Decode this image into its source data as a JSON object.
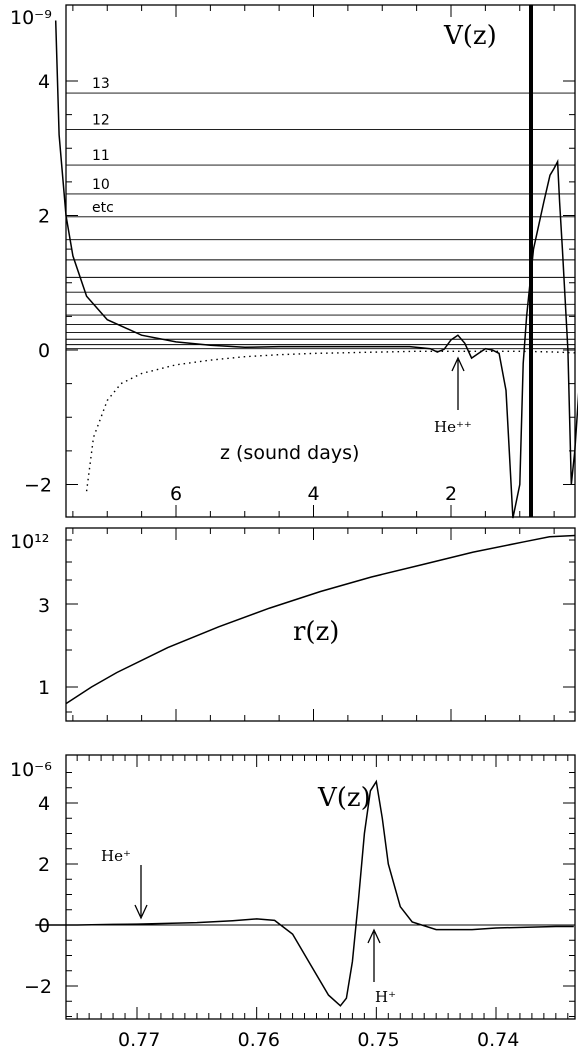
{
  "chart_data": [
    {
      "type": "line",
      "title": "V(z)",
      "scale_label": "10⁻⁹",
      "xlabel": "z (sound days)",
      "xlim": [
        7.9,
        -0.35
      ],
      "ylim": [
        -2.0,
        5.0
      ],
      "x_ticks": [
        "6",
        "4",
        "2"
      ],
      "y_ticks": [
        "4",
        "2",
        "0",
        "−2"
      ],
      "levels": [
        0.02,
        0.08,
        0.16,
        0.26,
        0.38,
        0.52,
        0.68,
        0.86,
        1.08,
        1.34,
        1.64,
        1.98,
        2.32,
        2.75,
        3.28,
        3.82
      ],
      "level_labels": [
        {
          "text": "13",
          "level": 3.82
        },
        {
          "text": "12",
          "level": 3.28
        },
        {
          "text": "11",
          "level": 2.75
        },
        {
          "text": "10",
          "level": 2.32
        },
        {
          "text": "etc",
          "level": 1.98
        }
      ],
      "series": [
        {
          "style": "solid",
          "x": [
            7.75,
            7.7,
            7.6,
            7.5,
            7.3,
            7.0,
            6.5,
            6.0,
            5.5,
            5.0,
            4.5,
            4.0,
            3.5,
            3.0,
            2.6,
            2.3,
            2.2,
            2.1,
            2.0,
            1.9,
            1.8,
            1.7,
            1.6,
            1.5,
            1.4,
            1.3,
            1.2,
            1.1,
            1.0,
            0.95,
            0.9,
            0.8,
            0.65,
            0.56,
            0.5,
            0.45,
            0.42,
            0.38,
            0.3,
            0.25,
            0.2,
            0.1,
            0.0,
            -0.1,
            -0.2,
            -0.3,
            -0.35
          ],
          "y": [
            4.9,
            3.2,
            2.0,
            1.4,
            0.8,
            0.45,
            0.22,
            0.12,
            0.07,
            0.04,
            0.05,
            0.05,
            0.05,
            0.05,
            0.05,
            0.02,
            -0.03,
            0.01,
            0.15,
            0.22,
            0.1,
            -0.12,
            -0.05,
            0.02,
            0.0,
            -0.05,
            -0.6,
            -2.5,
            -2.0,
            -0.2,
            0.5,
            1.5,
            2.2,
            2.6,
            2.7,
            2.8,
            2.2,
            1.5,
            0.0,
            -2.0,
            -1.5,
            0.0,
            -0.05,
            0.05,
            0.0,
            -0.02,
            -0.02
          ]
        },
        {
          "style": "dotted",
          "x": [
            7.3,
            7.2,
            7.0,
            6.8,
            6.5,
            6.0,
            5.5,
            5.0,
            4.5,
            4.0,
            3.5,
            3.0,
            2.5,
            2.0,
            1.5,
            1.0,
            0.5,
            0.0,
            -0.35
          ],
          "y": [
            -2.1,
            -1.3,
            -0.75,
            -0.5,
            -0.35,
            -0.22,
            -0.15,
            -0.1,
            -0.07,
            -0.05,
            -0.04,
            -0.03,
            -0.02,
            -0.02,
            -0.02,
            -0.02,
            -0.03,
            -0.05,
            -0.05
          ]
        }
      ],
      "annotations": [
        {
          "text": "He⁺⁺",
          "x": 2.1,
          "y": -0.4
        }
      ]
    },
    {
      "type": "line",
      "title": "r(z)",
      "scale_label": "10¹²",
      "y_ticks": [
        "3",
        "1"
      ],
      "series": [
        {
          "x": [
            0.0,
            0.05,
            0.1,
            0.2,
            0.3,
            0.4,
            0.5,
            0.6,
            0.7,
            0.8,
            0.9,
            0.95,
            1.0
          ],
          "y": [
            0.6,
            1.0,
            1.35,
            1.95,
            2.45,
            2.9,
            3.3,
            3.65,
            3.95,
            4.25,
            4.5,
            4.62,
            4.65
          ]
        }
      ]
    },
    {
      "type": "line",
      "title": "V(z)",
      "scale_label": "10⁻⁶",
      "xlim": [
        0.7785,
        0.7335
      ],
      "ylim": [
        -3.2,
        5.6
      ],
      "x_ticks": [
        "0.77",
        "0.76",
        "0.75",
        "0.74"
      ],
      "y_ticks": [
        "4",
        "2",
        "0",
        "−2"
      ],
      "series": [
        {
          "x": [
            0.7785,
            0.775,
            0.772,
            0.77,
            0.765,
            0.762,
            0.76,
            0.7585,
            0.757,
            0.7555,
            0.754,
            0.753,
            0.7525,
            0.752,
            0.7515,
            0.751,
            0.7505,
            0.75,
            0.7495,
            0.749,
            0.748,
            0.747,
            0.745,
            0.742,
            0.74,
            0.735,
            0.7335
          ],
          "y": [
            0.0,
            0.0,
            0.02,
            0.03,
            0.08,
            0.14,
            0.2,
            0.15,
            -0.3,
            -1.3,
            -2.3,
            -2.65,
            -2.4,
            -1.2,
            0.8,
            3.0,
            4.4,
            4.7,
            3.5,
            2.0,
            0.6,
            0.1,
            -0.15,
            -0.15,
            -0.1,
            -0.05,
            -0.05
          ]
        }
      ],
      "annotations": [
        {
          "text": "He⁺",
          "x": 0.7705,
          "y": 0.1
        },
        {
          "text": "H⁺",
          "x": 0.7502,
          "y": -0.2
        }
      ]
    }
  ]
}
